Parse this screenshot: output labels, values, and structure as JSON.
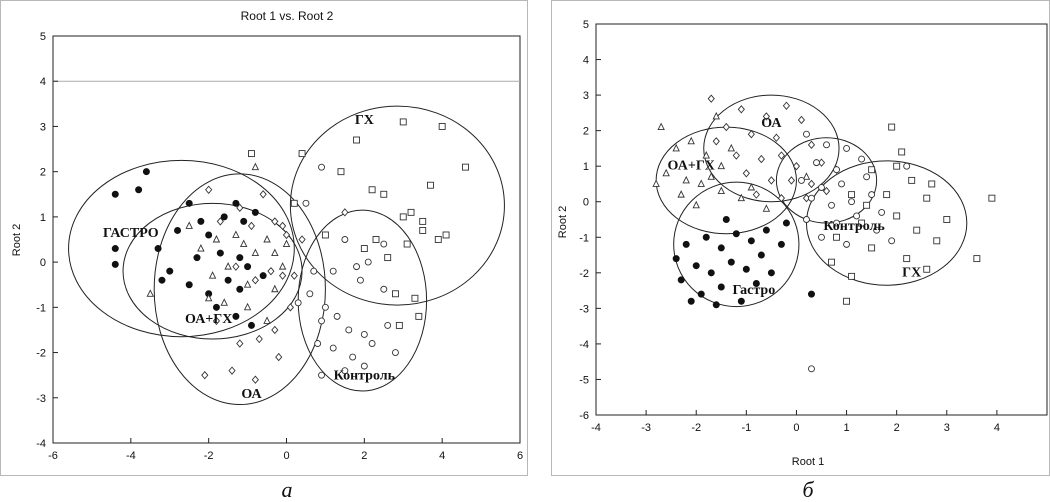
{
  "chart_data": [
    {
      "type": "scatter",
      "title": "Root 1 vs. Root 2",
      "xlabel": "",
      "ylabel": "Root 2",
      "xlim": [
        -6,
        6
      ],
      "ylim": [
        -4,
        5
      ],
      "xticks": [
        "-6",
        "-4",
        "-2",
        "0",
        "2",
        "4",
        "6"
      ],
      "yticks": [
        "5",
        "4",
        "3",
        "2",
        "1",
        "0",
        "-1",
        "-2",
        "-3",
        "-4"
      ],
      "caption": "а",
      "grid": false,
      "gridline_y": 4,
      "groups": [
        {
          "label": "ГАСТРО",
          "marker": "filled-circle",
          "ellipse": {
            "cx": -2.7,
            "cy": 0.3,
            "rx": 2.9,
            "ry": 1.95
          },
          "points": [
            [
              -4.4,
              1.5
            ],
            [
              -3.8,
              1.6
            ],
            [
              -3.6,
              2.0
            ],
            [
              -4.4,
              0.3
            ],
            [
              -4.4,
              -0.05
            ],
            [
              -3.3,
              0.3
            ],
            [
              -3.2,
              -0.4
            ],
            [
              -3.0,
              -0.2
            ],
            [
              -2.8,
              0.7
            ],
            [
              -2.5,
              1.3
            ],
            [
              -2.2,
              0.9
            ],
            [
              -2.0,
              0.6
            ],
            [
              -2.3,
              0.1
            ],
            [
              -1.6,
              1.0
            ],
            [
              -1.3,
              1.3
            ],
            [
              -1.1,
              0.9
            ],
            [
              -0.8,
              1.1
            ],
            [
              -1.7,
              0.2
            ],
            [
              -1.2,
              0.1
            ],
            [
              -1.0,
              -0.1
            ],
            [
              -1.5,
              -0.4
            ],
            [
              -1.2,
              -0.6
            ],
            [
              -0.9,
              -1.4
            ],
            [
              -1.3,
              -1.2
            ],
            [
              -2.0,
              -0.7
            ],
            [
              -2.5,
              -0.5
            ],
            [
              -0.6,
              -0.3
            ],
            [
              -1.8,
              -1.0
            ]
          ]
        },
        {
          "label": "ОА+ГХ",
          "marker": "triangle",
          "ellipse": {
            "cx": -1.9,
            "cy": -0.2,
            "rx": 2.3,
            "ry": 1.5
          },
          "points": [
            [
              -3.5,
              -0.7
            ],
            [
              -2.5,
              0.8
            ],
            [
              -2.2,
              0.3
            ],
            [
              -1.8,
              0.5
            ],
            [
              -1.5,
              -0.1
            ],
            [
              -1.1,
              0.4
            ],
            [
              -0.8,
              0.2
            ],
            [
              -0.5,
              0.5
            ],
            [
              -0.3,
              0.2
            ],
            [
              -0.1,
              -0.1
            ],
            [
              -2.0,
              -0.8
            ],
            [
              -1.6,
              -0.9
            ],
            [
              -1.0,
              -1.0
            ],
            [
              -0.5,
              -1.3
            ],
            [
              -0.8,
              2.1
            ],
            [
              0.0,
              0.4
            ],
            [
              -1.3,
              0.6
            ],
            [
              -1.9,
              -0.3
            ],
            [
              -1.0,
              -0.5
            ],
            [
              -0.3,
              -0.6
            ]
          ]
        },
        {
          "label": "ОА",
          "marker": "diamond",
          "ellipse": {
            "cx": -1.2,
            "cy": -0.6,
            "rx": 2.2,
            "ry": 2.55
          },
          "points": [
            [
              -2.0,
              1.6
            ],
            [
              -1.7,
              0.9
            ],
            [
              -1.2,
              1.2
            ],
            [
              -0.9,
              0.8
            ],
            [
              -0.6,
              1.5
            ],
            [
              -0.3,
              0.9
            ],
            [
              0.0,
              0.6
            ],
            [
              -1.3,
              -0.1
            ],
            [
              -0.8,
              -0.4
            ],
            [
              -0.4,
              -0.2
            ],
            [
              -0.1,
              -0.3
            ],
            [
              -1.8,
              -1.3
            ],
            [
              -1.2,
              -1.8
            ],
            [
              -0.7,
              -1.7
            ],
            [
              -0.3,
              -1.5
            ],
            [
              -2.1,
              -2.5
            ],
            [
              -1.4,
              -2.4
            ],
            [
              -0.8,
              -2.6
            ],
            [
              -0.2,
              -2.1
            ],
            [
              0.1,
              -1.0
            ],
            [
              -0.1,
              0.8
            ],
            [
              1.5,
              1.1
            ],
            [
              0.4,
              0.5
            ],
            [
              0.2,
              -0.3
            ]
          ]
        },
        {
          "label": "ГХ",
          "marker": "square",
          "ellipse": {
            "cx": 2.85,
            "cy": 1.25,
            "rx": 2.75,
            "ry": 2.2
          },
          "points": [
            [
              -0.9,
              2.4
            ],
            [
              0.4,
              2.4
            ],
            [
              1.8,
              2.7
            ],
            [
              3.0,
              3.1
            ],
            [
              4.0,
              3.0
            ],
            [
              4.6,
              2.1
            ],
            [
              2.5,
              1.5
            ],
            [
              3.7,
              1.7
            ],
            [
              1.4,
              2.0
            ],
            [
              2.2,
              1.6
            ],
            [
              3.0,
              1.0
            ],
            [
              3.2,
              1.1
            ],
            [
              1.0,
              0.6
            ],
            [
              2.3,
              0.5
            ],
            [
              3.5,
              0.7
            ],
            [
              3.9,
              0.5
            ],
            [
              4.1,
              0.6
            ],
            [
              2.0,
              0.3
            ],
            [
              0.2,
              1.3
            ],
            [
              3.3,
              -0.8
            ],
            [
              3.4,
              -1.2
            ],
            [
              2.9,
              -1.4
            ],
            [
              3.1,
              0.4
            ],
            [
              2.8,
              -0.7
            ],
            [
              3.5,
              0.9
            ],
            [
              2.6,
              0.1
            ]
          ]
        },
        {
          "label": "Контроль",
          "marker": "open-circle",
          "ellipse": {
            "cx": 1.95,
            "cy": -0.85,
            "rx": 1.65,
            "ry": 2.0
          },
          "points": [
            [
              0.5,
              1.3
            ],
            [
              0.9,
              2.1
            ],
            [
              1.5,
              0.5
            ],
            [
              1.8,
              -0.1
            ],
            [
              2.1,
              0.0
            ],
            [
              2.5,
              0.4
            ],
            [
              1.2,
              -0.2
            ],
            [
              0.6,
              -0.7
            ],
            [
              0.9,
              -1.3
            ],
            [
              1.3,
              -1.2
            ],
            [
              1.6,
              -1.5
            ],
            [
              2.0,
              -1.6
            ],
            [
              0.8,
              -1.8
            ],
            [
              1.2,
              -1.9
            ],
            [
              1.7,
              -2.1
            ],
            [
              2.2,
              -1.8
            ],
            [
              2.6,
              -1.4
            ],
            [
              0.9,
              -2.5
            ],
            [
              1.5,
              -2.4
            ],
            [
              2.0,
              -2.3
            ],
            [
              1.0,
              -1.0
            ],
            [
              2.5,
              -0.6
            ],
            [
              0.3,
              -0.9
            ],
            [
              2.8,
              -2.0
            ],
            [
              1.9,
              -0.4
            ],
            [
              0.7,
              -0.2
            ]
          ]
        }
      ]
    },
    {
      "type": "scatter",
      "title": "",
      "xlabel": "Root 1",
      "ylabel": "Root 2",
      "xlim": [
        -4,
        5
      ],
      "ylim": [
        -6,
        5
      ],
      "xticks": [
        "-4",
        "-3",
        "-2",
        "-1",
        "0",
        "1",
        "2",
        "3",
        "4"
      ],
      "yticks": [
        "5",
        "4",
        "3",
        "2",
        "1",
        "0",
        "-1",
        "-2",
        "-3",
        "-4",
        "-5",
        "-6"
      ],
      "caption": "б",
      "grid": false,
      "groups": [
        {
          "label": "ОА",
          "marker": "diamond",
          "ellipse": {
            "cx": -0.5,
            "cy": 1.5,
            "rx": 1.35,
            "ry": 1.5
          },
          "points": [
            [
              -1.7,
              2.9
            ],
            [
              -1.1,
              2.6
            ],
            [
              -0.6,
              2.4
            ],
            [
              -0.2,
              2.7
            ],
            [
              0.1,
              2.3
            ],
            [
              -1.4,
              2.1
            ],
            [
              -0.9,
              1.9
            ],
            [
              -0.4,
              1.8
            ],
            [
              0.3,
              1.6
            ],
            [
              -1.2,
              1.3
            ],
            [
              -0.7,
              1.2
            ],
            [
              -0.3,
              1.3
            ],
            [
              0.0,
              1.0
            ],
            [
              0.5,
              1.1
            ],
            [
              -1.0,
              0.8
            ],
            [
              -0.5,
              0.6
            ],
            [
              -0.1,
              0.6
            ],
            [
              0.3,
              0.5
            ],
            [
              -0.8,
              0.2
            ],
            [
              -0.3,
              0.1
            ],
            [
              0.2,
              0.1
            ],
            [
              0.6,
              0.3
            ],
            [
              -1.6,
              1.7
            ],
            [
              0.8,
              0.9
            ]
          ]
        },
        {
          "label": "ОА+ГХ",
          "marker": "triangle",
          "ellipse": {
            "cx": -1.4,
            "cy": 0.6,
            "rx": 1.4,
            "ry": 1.5
          },
          "points": [
            [
              -2.7,
              2.1
            ],
            [
              -2.4,
              1.5
            ],
            [
              -2.1,
              1.7
            ],
            [
              -1.8,
              1.3
            ],
            [
              -1.5,
              1.0
            ],
            [
              -2.6,
              0.8
            ],
            [
              -2.2,
              0.6
            ],
            [
              -1.9,
              0.5
            ],
            [
              -1.5,
              0.3
            ],
            [
              -1.1,
              0.1
            ],
            [
              -2.8,
              0.5
            ],
            [
              -2.3,
              0.2
            ],
            [
              -1.7,
              0.7
            ],
            [
              -1.3,
              1.5
            ],
            [
              -0.9,
              0.4
            ],
            [
              -0.6,
              -0.2
            ],
            [
              0.2,
              0.7
            ],
            [
              0.5,
              0.4
            ],
            [
              -2.0,
              -0.1
            ],
            [
              -1.6,
              2.4
            ]
          ]
        },
        {
          "label": "Гастро",
          "marker": "filled-circle",
          "ellipse": {
            "cx": -1.2,
            "cy": -1.2,
            "rx": 1.25,
            "ry": 1.75
          },
          "points": [
            [
              -2.2,
              -1.2
            ],
            [
              -1.8,
              -1.0
            ],
            [
              -1.5,
              -1.3
            ],
            [
              -1.2,
              -0.9
            ],
            [
              -0.9,
              -1.1
            ],
            [
              -0.6,
              -0.8
            ],
            [
              -2.0,
              -1.8
            ],
            [
              -1.7,
              -2.0
            ],
            [
              -1.3,
              -1.7
            ],
            [
              -1.0,
              -1.9
            ],
            [
              -0.7,
              -1.5
            ],
            [
              -2.3,
              -2.2
            ],
            [
              -1.9,
              -2.6
            ],
            [
              -1.5,
              -2.4
            ],
            [
              -1.1,
              -2.8
            ],
            [
              -0.8,
              -2.3
            ],
            [
              -2.1,
              -2.8
            ],
            [
              -1.6,
              -2.9
            ],
            [
              -0.3,
              -1.2
            ],
            [
              0.3,
              -2.6
            ],
            [
              -1.4,
              -0.5
            ],
            [
              -0.2,
              -0.6
            ],
            [
              -2.4,
              -1.6
            ],
            [
              -0.5,
              -2.0
            ]
          ]
        },
        {
          "label": "Контроль",
          "marker": "open-circle",
          "ellipse": {
            "cx": 0.6,
            "cy": 0.6,
            "rx": 1.0,
            "ry": 1.2
          },
          "points": [
            [
              0.2,
              1.9
            ],
            [
              0.6,
              1.6
            ],
            [
              1.0,
              1.5
            ],
            [
              0.4,
              1.1
            ],
            [
              0.8,
              0.9
            ],
            [
              1.3,
              1.2
            ],
            [
              0.1,
              0.6
            ],
            [
              0.5,
              0.4
            ],
            [
              0.9,
              0.5
            ],
            [
              1.4,
              0.7
            ],
            [
              0.3,
              0.1
            ],
            [
              0.7,
              -0.1
            ],
            [
              1.1,
              0.0
            ],
            [
              1.5,
              0.2
            ],
            [
              0.2,
              -0.5
            ],
            [
              0.8,
              -0.6
            ],
            [
              1.2,
              -0.4
            ],
            [
              1.7,
              -0.3
            ],
            [
              0.5,
              -1.0
            ],
            [
              1.0,
              -1.2
            ],
            [
              0.3,
              -4.7
            ],
            [
              1.9,
              -1.1
            ],
            [
              2.2,
              1.0
            ],
            [
              1.6,
              -0.8
            ]
          ]
        },
        {
          "label": "ГХ",
          "marker": "square",
          "ellipse": {
            "cx": 1.8,
            "cy": -0.6,
            "rx": 1.6,
            "ry": 1.75
          },
          "points": [
            [
              1.9,
              2.1
            ],
            [
              2.1,
              1.4
            ],
            [
              1.5,
              0.9
            ],
            [
              2.3,
              0.6
            ],
            [
              1.1,
              0.2
            ],
            [
              1.8,
              0.2
            ],
            [
              2.6,
              0.1
            ],
            [
              3.0,
              -0.5
            ],
            [
              1.3,
              -0.6
            ],
            [
              2.0,
              -0.4
            ],
            [
              2.4,
              -0.8
            ],
            [
              0.8,
              -1.0
            ],
            [
              1.5,
              -1.3
            ],
            [
              2.2,
              -1.6
            ],
            [
              2.8,
              -1.1
            ],
            [
              3.6,
              -1.6
            ],
            [
              1.1,
              -2.1
            ],
            [
              2.6,
              -1.9
            ],
            [
              1.0,
              -2.8
            ],
            [
              0.7,
              -1.7
            ],
            [
              2.7,
              0.5
            ],
            [
              2.0,
              1.0
            ],
            [
              3.9,
              0.1
            ],
            [
              1.4,
              -0.1
            ]
          ]
        }
      ]
    }
  ]
}
